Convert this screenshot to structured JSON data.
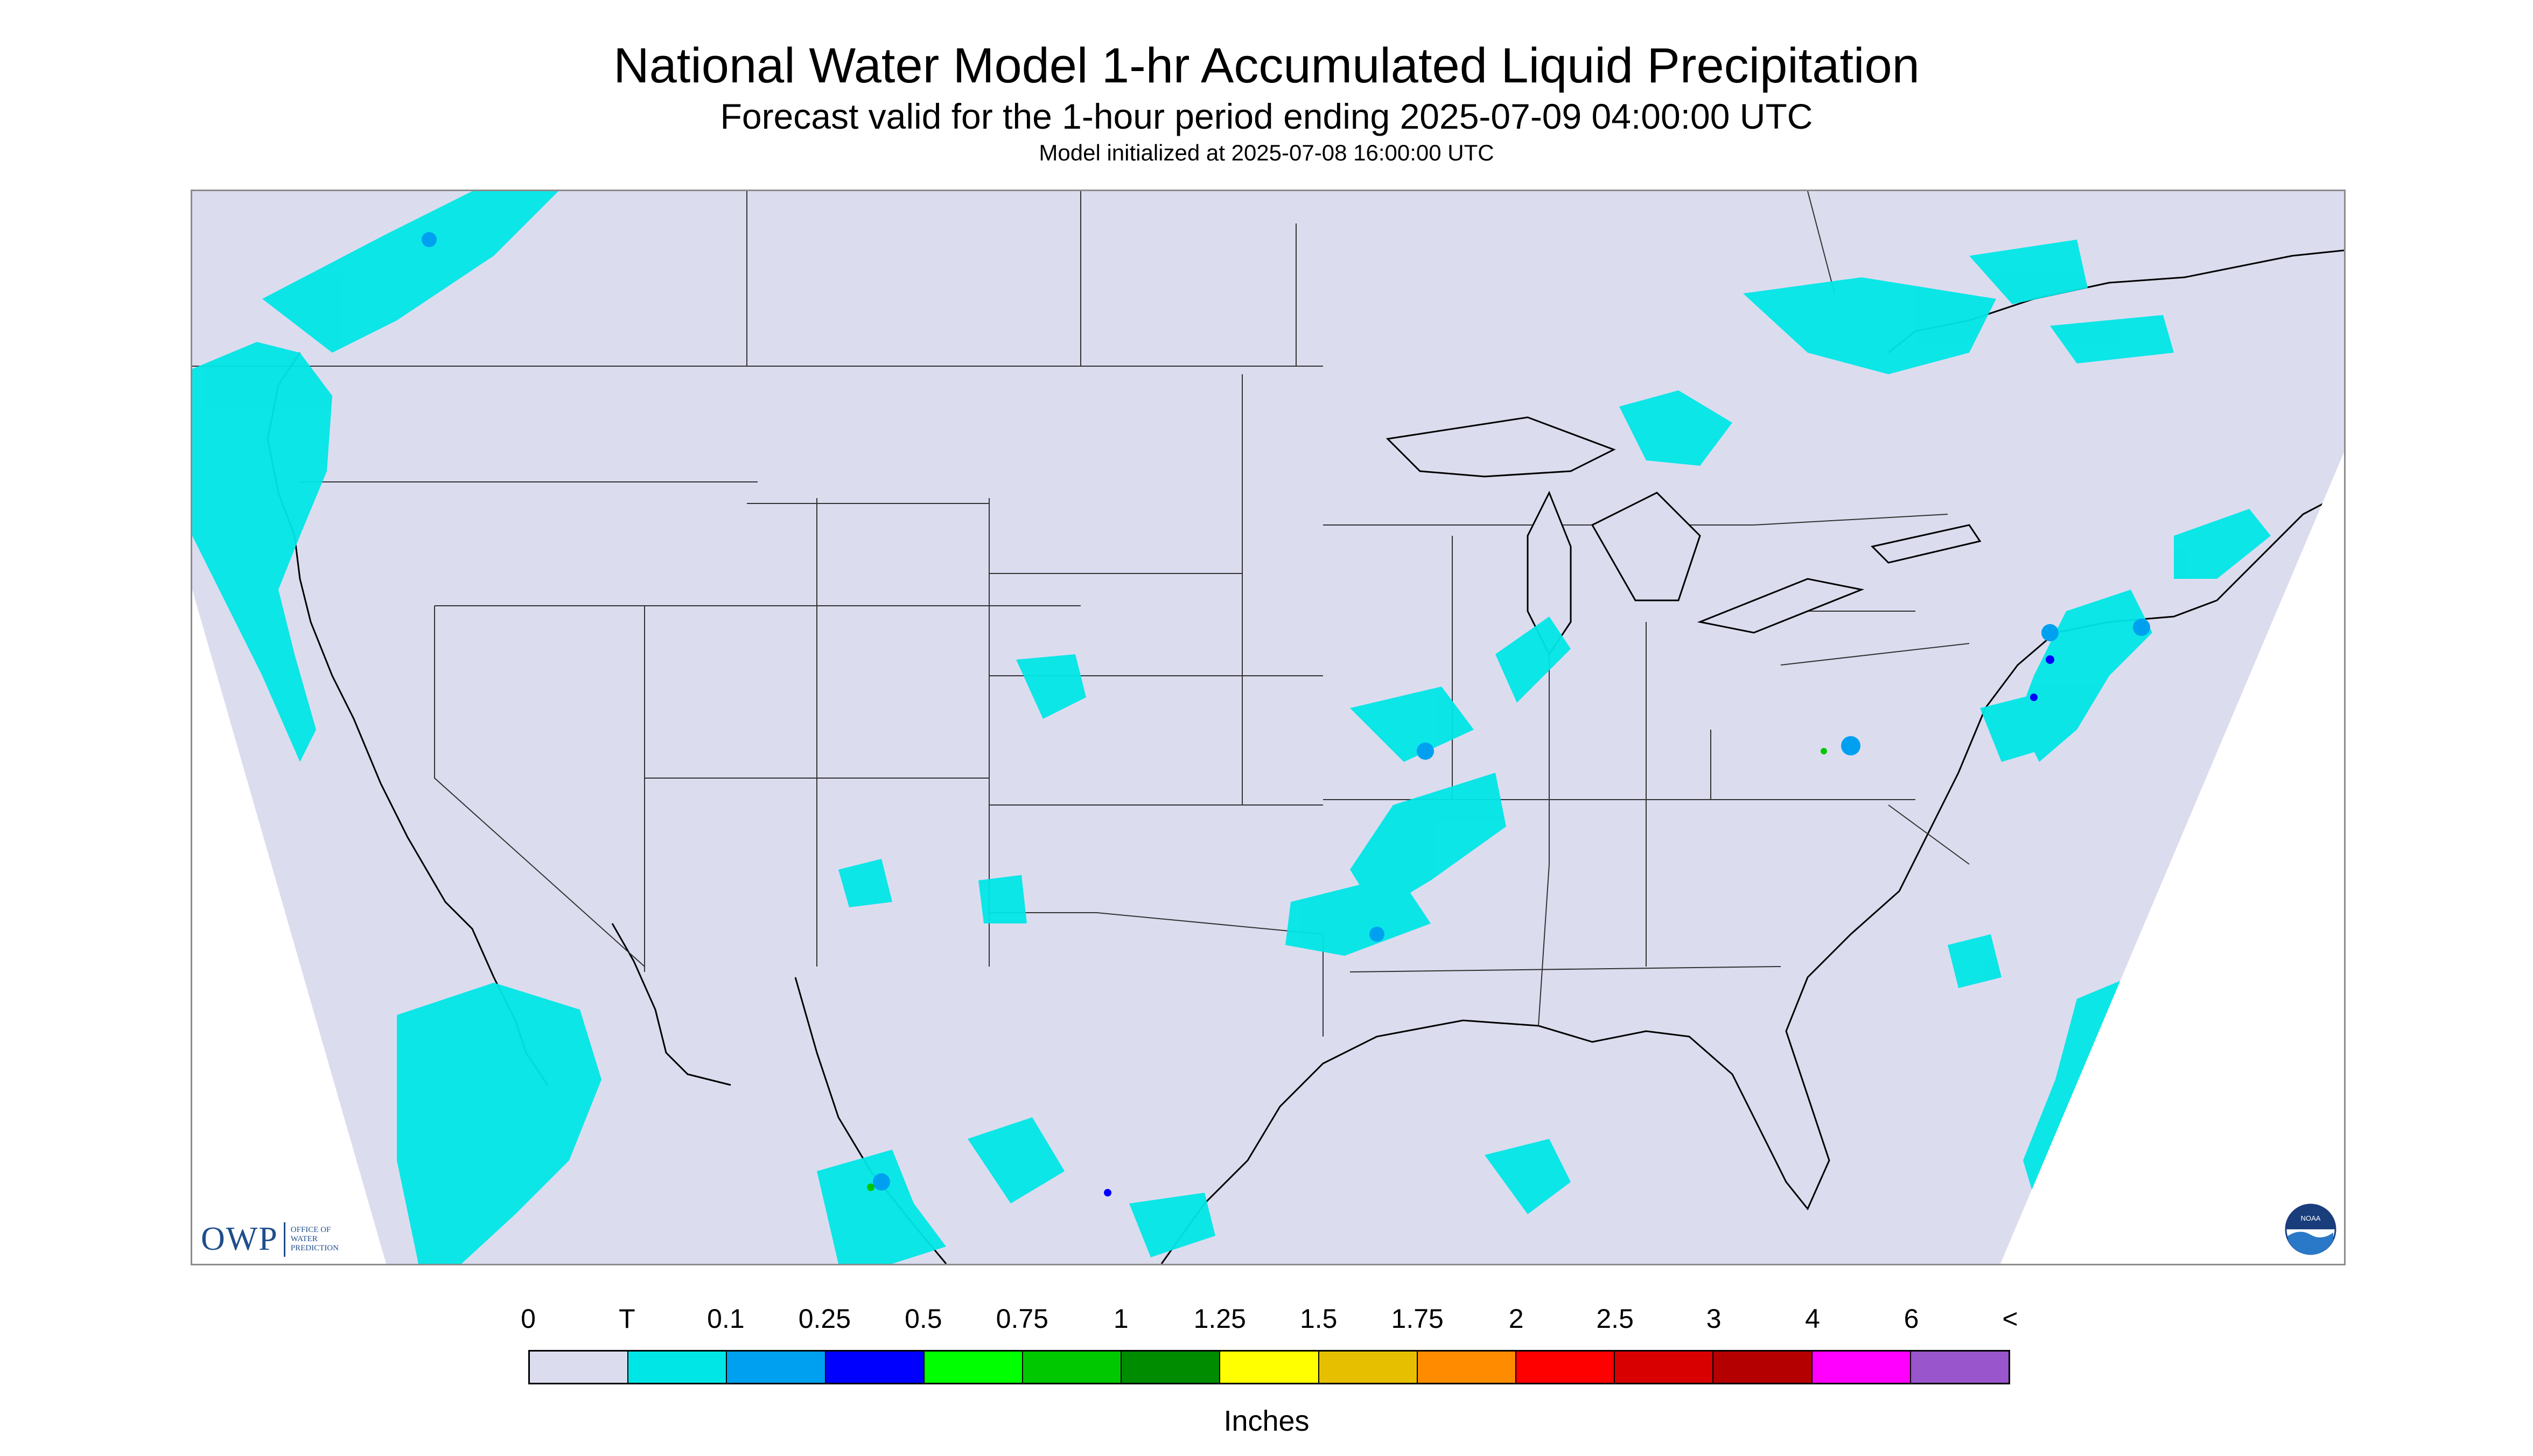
{
  "header": {
    "title": "National Water Model 1-hr Accumulated Liquid Precipitation",
    "subtitle": "Forecast valid for the 1-hour period ending 2025-07-09 04:00:00 UTC",
    "init": "Model initialized at 2025-07-08 16:00:00 UTC"
  },
  "legend": {
    "tick_labels": [
      "0",
      "T",
      "0.1",
      "0.25",
      "0.5",
      "0.75",
      "1",
      "1.25",
      "1.5",
      "1.75",
      "2",
      "2.5",
      "3",
      "4",
      "6",
      "<"
    ],
    "colors": [
      "#dcdcef",
      "#00e6e6",
      "#00a0f0",
      "#0000ff",
      "#00ff00",
      "#00c800",
      "#008c00",
      "#ffff00",
      "#e6c000",
      "#ff8c00",
      "#ff0000",
      "#d80000",
      "#b40000",
      "#ff00ff",
      "#9955cc"
    ],
    "units": "Inches"
  },
  "logos": {
    "owp_text": "OWP",
    "owp_subtext": [
      "OFFICE OF",
      "WATER",
      "PREDICTION"
    ],
    "noaa_text": "NOAA"
  },
  "map": {
    "background_color": "#dcdcef",
    "precip_colors": {
      "trace": "#00e6e6",
      "light": "#00a0f0",
      "moderate": "#0000ff",
      "heavy": "#00c800"
    }
  }
}
